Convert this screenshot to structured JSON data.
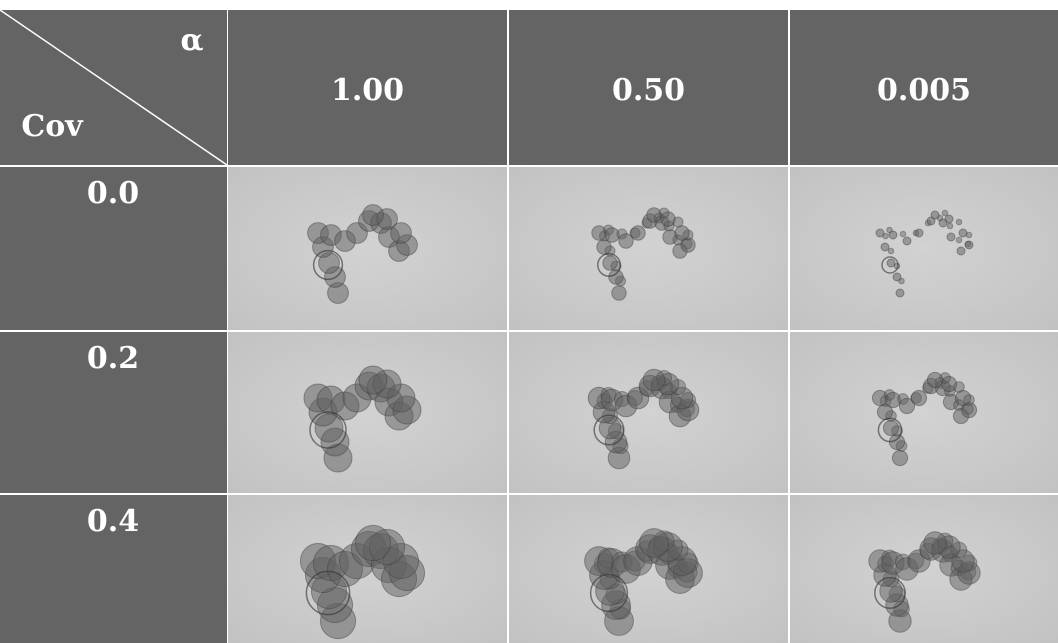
{
  "header": {
    "corner_top": "α",
    "corner_bottom": "Cov",
    "columns": [
      "1.00",
      "0.50",
      "0.005"
    ]
  },
  "rows": [
    {
      "label": "0.0"
    },
    {
      "label": "0.2"
    },
    {
      "label": "0.4"
    }
  ]
}
